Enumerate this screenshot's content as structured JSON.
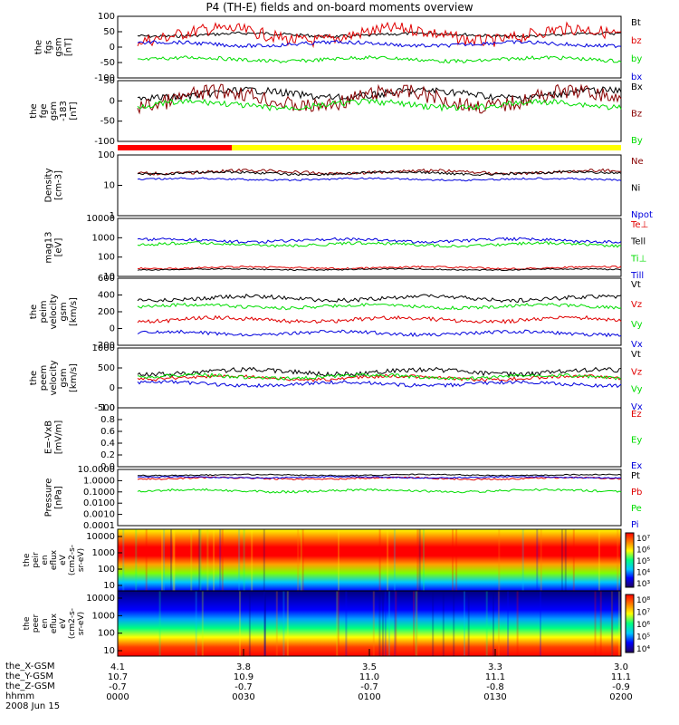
{
  "title": "P4 (TH-E) fields and on-board moments overview",
  "colors": {
    "black": "#000000",
    "red": "#e00000",
    "green": "#00dd00",
    "blue": "#0000dd",
    "yellow": "#ffff00",
    "darkred": "#880000"
  },
  "panels": [
    {
      "key": "fgs",
      "ylabel": [
        "the",
        "fgs",
        "gsm",
        "[nT]"
      ],
      "yticks": [
        "100",
        "50",
        "0",
        "-50",
        "-100"
      ],
      "series": [
        {
          "name": "Bt",
          "color": "black",
          "base": 0.3,
          "amp": 0.05
        },
        {
          "name": "bz",
          "color": "red",
          "base": 0.3,
          "amp": 0.2
        },
        {
          "name": "by",
          "color": "green",
          "base": 0.7,
          "amp": 0.06
        },
        {
          "name": "bx",
          "color": "blue",
          "base": 0.45,
          "amp": 0.06
        }
      ]
    },
    {
      "key": "fge",
      "ylabel": [
        "the",
        "fge",
        "gsm",
        "-183",
        "[nT]"
      ],
      "yticks": [
        "50",
        "0",
        "-50",
        "-100"
      ],
      "series": [
        {
          "name": "Bx",
          "color": "black",
          "base": 0.22,
          "amp": 0.12
        },
        {
          "name": "Bz",
          "color": "darkred",
          "base": 0.3,
          "amp": 0.25
        },
        {
          "name": "By",
          "color": "green",
          "base": 0.4,
          "amp": 0.1
        }
      ]
    },
    {
      "key": "density",
      "ylabel": [
        "Density",
        "[cm-3]"
      ],
      "yticks": [
        "100",
        "10",
        "1"
      ],
      "series": [
        {
          "name": "Ne",
          "color": "darkred",
          "base": 0.28,
          "amp": 0.05
        },
        {
          "name": "Ni",
          "color": "black",
          "base": 0.3,
          "amp": 0.04
        },
        {
          "name": "Npot",
          "color": "blue",
          "base": 0.4,
          "amp": 0.03
        }
      ]
    },
    {
      "key": "mag",
      "ylabel": [
        "mag13",
        "[eV]"
      ],
      "yticks": [
        "10000",
        "1000",
        "100",
        "10"
      ],
      "series": [
        {
          "name": "Te⊥",
          "color": "red",
          "base": 0.85,
          "amp": 0.03
        },
        {
          "name": "Tell",
          "color": "black",
          "base": 0.88,
          "amp": 0.02
        },
        {
          "name": "Ti⊥",
          "color": "green",
          "base": 0.45,
          "amp": 0.05
        },
        {
          "name": "Till",
          "color": "blue",
          "base": 0.38,
          "amp": 0.05
        }
      ]
    },
    {
      "key": "peim",
      "ylabel": [
        "the",
        "peim",
        "velocity",
        "gsm",
        "[km/s]"
      ],
      "yticks": [
        "600",
        "400",
        "200",
        "0",
        "-200"
      ],
      "series": [
        {
          "name": "Vt",
          "color": "black",
          "base": 0.3,
          "amp": 0.06
        },
        {
          "name": "Vz",
          "color": "red",
          "base": 0.62,
          "amp": 0.06
        },
        {
          "name": "Vy",
          "color": "green",
          "base": 0.42,
          "amp": 0.05
        },
        {
          "name": "Vx",
          "color": "blue",
          "base": 0.82,
          "amp": 0.05
        }
      ]
    },
    {
      "key": "peem",
      "ylabel": [
        "the",
        "peem",
        "velocity",
        "gsm",
        "[km/s]"
      ],
      "yticks": [
        "1000",
        "500",
        "0",
        "-500"
      ],
      "series": [
        {
          "name": "Vt",
          "color": "black",
          "base": 0.4,
          "amp": 0.08
        },
        {
          "name": "Vz",
          "color": "red",
          "base": 0.5,
          "amp": 0.06
        },
        {
          "name": "Vy",
          "color": "green",
          "base": 0.48,
          "amp": 0.06
        },
        {
          "name": "Vx",
          "color": "blue",
          "base": 0.6,
          "amp": 0.06
        }
      ]
    },
    {
      "key": "efield",
      "ylabel": [
        "E=-VxB",
        "[mV/m]"
      ],
      "yticks": [
        "1.0",
        "0.8",
        "0.6",
        "0.4",
        "0.2",
        "0.0"
      ],
      "series": [
        {
          "name": "Ez",
          "color": "red",
          "base": 1.5,
          "amp": 0.0
        },
        {
          "name": "Ey",
          "color": "green",
          "base": 1.5,
          "amp": 0.0
        },
        {
          "name": "Ex",
          "color": "blue",
          "base": 1.5,
          "amp": 0.0
        }
      ]
    },
    {
      "key": "pressure",
      "ylabel": [
        "Pressure",
        "[nPa]"
      ],
      "yticks": [
        "10.0000",
        "1.0000",
        "0.1000",
        "0.0100",
        "0.0010",
        "0.0001"
      ],
      "series": [
        {
          "name": "Pt",
          "color": "black",
          "base": 0.1,
          "amp": 0.02
        },
        {
          "name": "Pb",
          "color": "red",
          "base": 0.16,
          "amp": 0.03
        },
        {
          "name": "Pe",
          "color": "green",
          "base": 0.38,
          "amp": 0.04
        },
        {
          "name": "Pi",
          "color": "blue",
          "base": 0.14,
          "amp": 0.02
        }
      ]
    }
  ],
  "spectrograms": [
    {
      "key": "peir",
      "ylabel": [
        "the",
        "peir",
        "en",
        "eflux",
        "eV",
        "(cm2-s-",
        "sr-eV)"
      ],
      "yticks": [
        "10000",
        "1000",
        "100",
        "10"
      ],
      "cbar_ticks": [
        "10⁷",
        "10⁶",
        "10⁵",
        "10⁴",
        "10³"
      ]
    },
    {
      "key": "peer",
      "ylabel": [
        "the",
        "peer",
        "en",
        "eflux",
        "eV",
        "(cm2-s-",
        "sr-eV)"
      ],
      "yticks": [
        "10000",
        "1000",
        "100",
        "10"
      ],
      "cbar_ticks": [
        "10⁸",
        "10⁷",
        "10⁶",
        "10⁵",
        "10⁴"
      ]
    }
  ],
  "time_axis": {
    "labels": [
      "0000",
      "0030",
      "0100",
      "0130",
      "0200"
    ],
    "rows": [
      {
        "name": "the_X-GSM",
        "values": [
          "4.1",
          "3.8",
          "3.5",
          "3.3",
          "3.0"
        ]
      },
      {
        "name": "the_Y-GSM",
        "values": [
          "10.7",
          "10.9",
          "11.0",
          "11.1",
          "11.1"
        ]
      },
      {
        "name": "the_Z-GSM",
        "values": [
          "-0.7",
          "-0.7",
          "-0.7",
          "-0.8",
          "-0.9"
        ]
      },
      {
        "name": "hhmm",
        "values": [
          "0000",
          "0030",
          "0100",
          "0130",
          "0200"
        ]
      }
    ],
    "date": "2008 Jun 15"
  }
}
